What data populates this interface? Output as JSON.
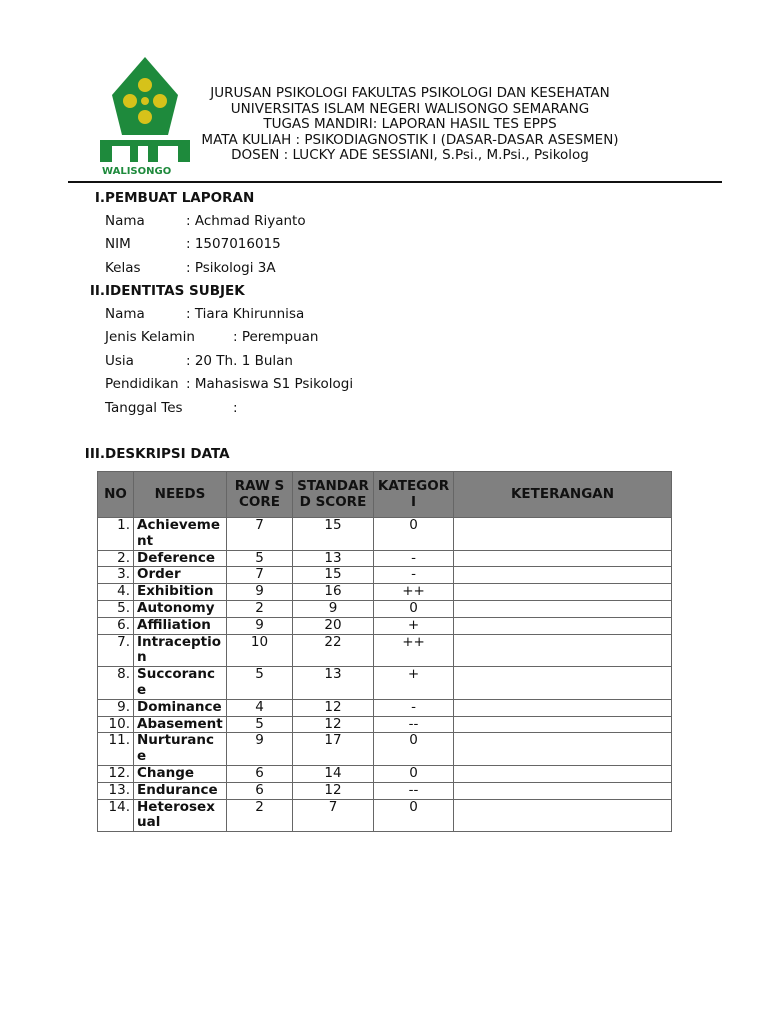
{
  "logo": {
    "text": "WALISONGO",
    "colors": {
      "green": "#1e8a3c",
      "yellow": "#d6c21a"
    }
  },
  "header": [
    "JURUSAN PSIKOLOGI FAKULTAS PSIKOLOGI DAN KESEHATAN",
    "UNIVERSITAS ISLAM NEGERI WALISONGO SEMARANG",
    "TUGAS MANDIRI: LAPORAN HASIL TES EPPS",
    "MATA KULIAH : PSIKODIAGNOSTIK I (DASAR-DASAR ASESMEN)",
    "DOSEN : LUCKY ADE SESSIANI, S.Psi., M.Psi., Psikolog"
  ],
  "sections": [
    {
      "num": "I.",
      "title": "PEMBUAT LAPORAN",
      "fields": [
        {
          "label": "Nama",
          "value": ": Achmad Riyanto"
        },
        {
          "label": "NIM",
          "value": ": 1507016015"
        },
        {
          "label": "Kelas",
          "value": ": Psikologi 3A"
        }
      ]
    },
    {
      "num": "II.",
      "title": "IDENTITAS SUBJEK",
      "fields": [
        {
          "label": "Nama",
          "value": ": Tiara Khirunnisa"
        },
        {
          "label": "Jenis Kelamin",
          "value": ": Perempuan"
        },
        {
          "label": "Usia",
          "value": ": 20 Th. 1 Bulan"
        },
        {
          "label": "Pendidikan",
          "value": ": Mahasiswa S1 Psikologi"
        },
        {
          "label": "Tanggal Tes",
          "value": ":"
        }
      ]
    },
    {
      "num": "III.",
      "title": "DESKRIPSI DATA"
    }
  ],
  "table": {
    "headers": [
      "NO",
      "NEEDS",
      "RAW SCORE",
      "STANDARD SCORE",
      "KATEGORI",
      "KETERANGAN"
    ],
    "rows": [
      [
        "1.",
        "Achievement",
        "7",
        "15",
        "0",
        ""
      ],
      [
        "2.",
        "Deference",
        "5",
        "13",
        "-",
        ""
      ],
      [
        "3.",
        "Order",
        "7",
        "15",
        "-",
        ""
      ],
      [
        "4.",
        "Exhibition",
        "9",
        "16",
        "++",
        ""
      ],
      [
        "5.",
        "Autonomy",
        "2",
        "9",
        "0",
        ""
      ],
      [
        "6.",
        "Affiliation",
        "9",
        "20",
        "+",
        ""
      ],
      [
        "7.",
        "Intraception",
        "10",
        "22",
        "++",
        ""
      ],
      [
        "8.",
        "Succorance",
        "5",
        "13",
        "+",
        ""
      ],
      [
        "9.",
        "Dominance",
        "4",
        "12",
        "-",
        ""
      ],
      [
        "10.",
        "Abasement",
        "5",
        "12",
        "--",
        ""
      ],
      [
        "11.",
        "Nurturance",
        "9",
        "17",
        "0",
        ""
      ],
      [
        "12.",
        "Change",
        "6",
        "14",
        "0",
        ""
      ],
      [
        "13.",
        "Endurance",
        "6",
        "12",
        "--",
        ""
      ],
      [
        "14.",
        "Heterosexual",
        "2",
        "7",
        "0",
        ""
      ]
    ]
  }
}
